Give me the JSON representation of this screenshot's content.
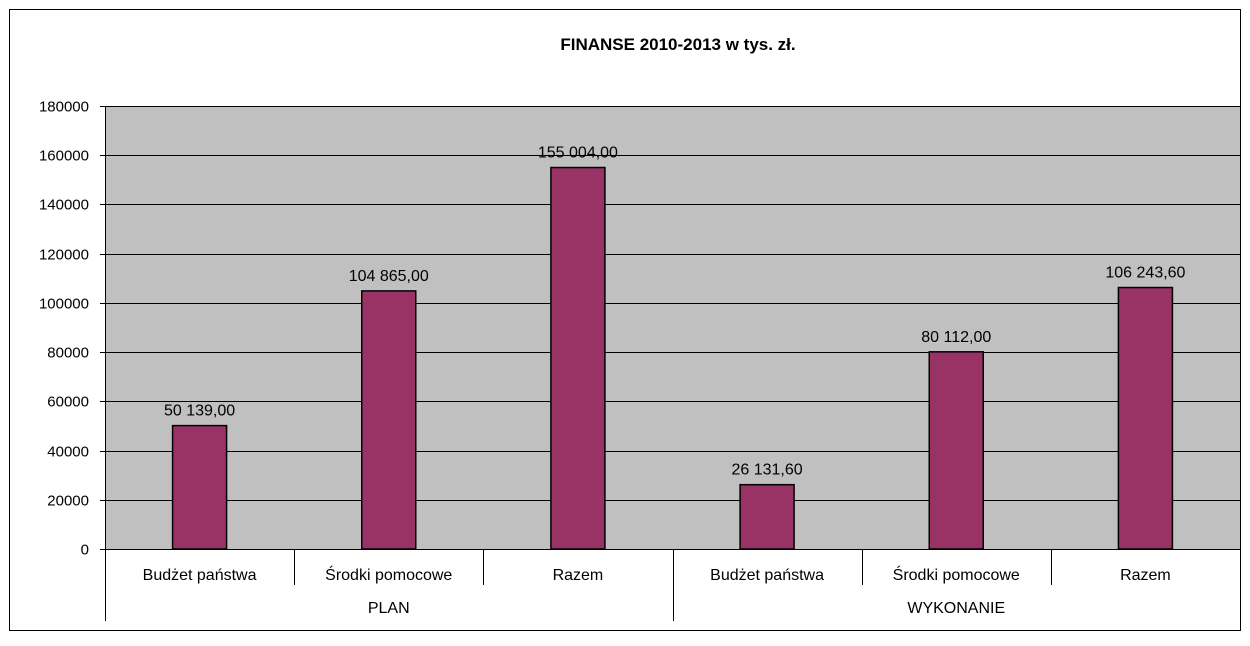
{
  "chart_data": {
    "type": "bar",
    "title": "FINANSE 2010-2013 w tys. zł.",
    "xlabel": "",
    "ylabel": "",
    "ylim": [
      0,
      180000
    ],
    "yticks": [
      0,
      20000,
      40000,
      60000,
      80000,
      100000,
      120000,
      140000,
      160000,
      180000
    ],
    "ytick_labels": [
      "0",
      "20000",
      "40000",
      "60000",
      "80000",
      "100000",
      "120000",
      "140000",
      "160000",
      "180000"
    ],
    "grid": true,
    "legend": "none",
    "colors": {
      "bar": "#993366",
      "plot_background": "#C0C0C0",
      "gridline": "#000000"
    },
    "categories": [
      "Budżet państwa",
      "Środki pomocowe",
      "Razem",
      "Budżet państwa",
      "Środki pomocowe",
      "Razem"
    ],
    "groups": [
      {
        "label": "PLAN",
        "span": 3
      },
      {
        "label": "WYKONANIE",
        "span": 3
      }
    ],
    "values": [
      50139.0,
      104865.0,
      155004.0,
      26131.6,
      80112.0,
      106243.6
    ],
    "data_labels": [
      "50 139,00",
      "104 865,00",
      "155 004,00",
      "26 131,60",
      "80 112,00",
      "106 243,60"
    ]
  }
}
